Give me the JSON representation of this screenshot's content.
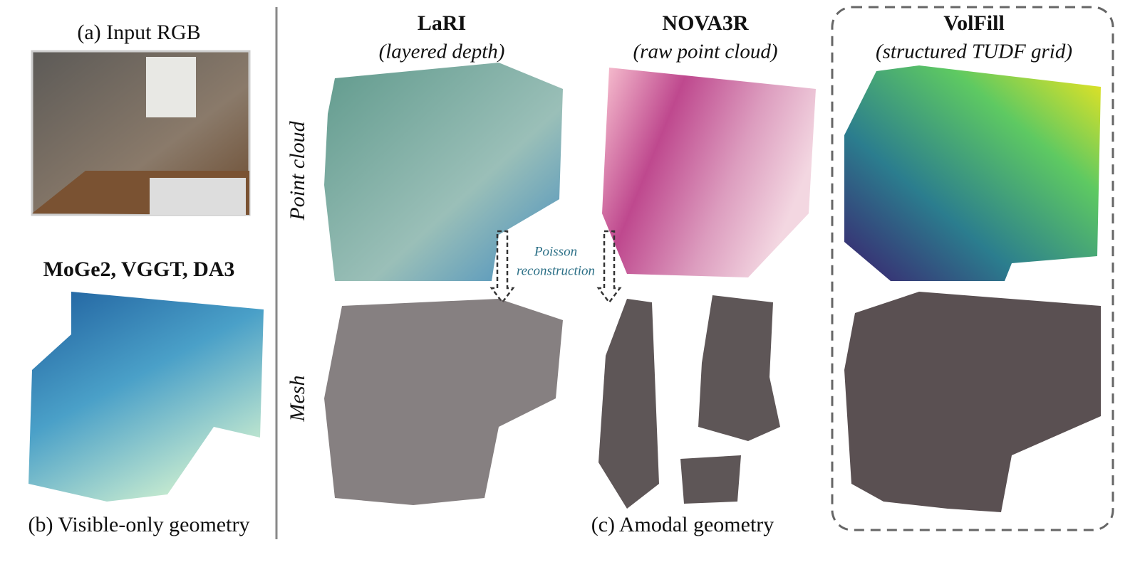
{
  "left": {
    "input_caption": "(a) Input RGB",
    "methods_label": "MoGe2, VGGT, DA3",
    "caption": "(b) Visible-only geometry"
  },
  "columns": [
    {
      "name": "LaRI",
      "subtitle": "(layered depth)"
    },
    {
      "name": "NOVA3R",
      "subtitle": "(raw point cloud)"
    },
    {
      "name": "VolFill",
      "subtitle": "(structured TUDF grid)"
    }
  ],
  "row_labels": [
    "Point cloud",
    "Mesh"
  ],
  "annotation": [
    "Poisson",
    "reconstruction"
  ],
  "caption": "(c) Amodal geometry"
}
